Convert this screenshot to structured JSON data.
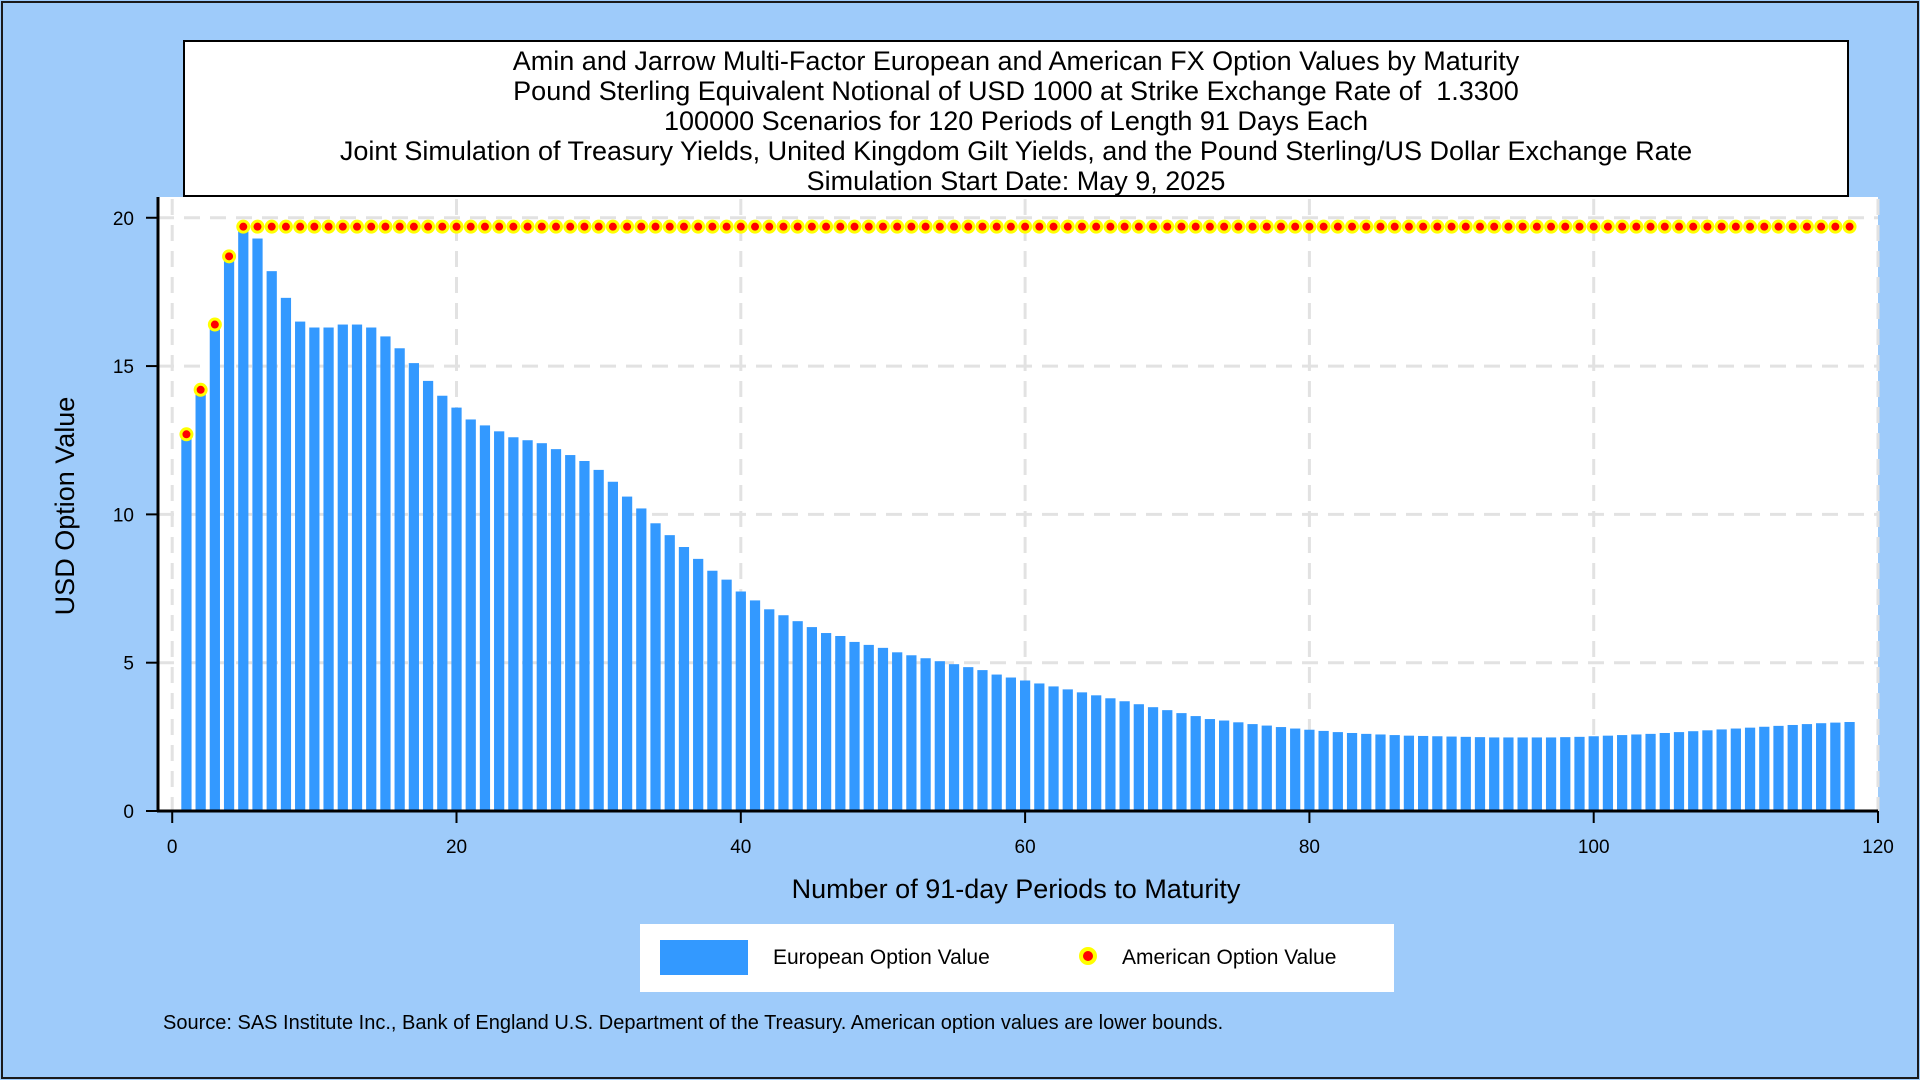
{
  "chart_data": {
    "type": "bar",
    "title_lines": [
      "Amin and Jarrow Multi-Factor European and American FX Option Values by Maturity",
      "Pound Sterling Equivalent Notional of USD 1000 at Strike Exchange Rate of  1.3300",
      "100000 Scenarios for 120 Periods of Length 91 Days Each",
      "Joint Simulation of Treasury Yields, United Kingdom Gilt Yields, and the Pound Sterling/US Dollar Exchange Rate",
      "Simulation Start Date: May 9, 2025"
    ],
    "xlabel": "Number of 91-day Periods to Maturity",
    "ylabel": "USD Option Value",
    "xlim": [
      -1,
      120
    ],
    "ylim": [
      0,
      20.7
    ],
    "xticks": [
      "0",
      "20",
      "40",
      "60",
      "80",
      "100",
      "120"
    ],
    "yticks": [
      "0",
      "5",
      "10",
      "15",
      "20"
    ],
    "grid": true,
    "legend_position": "bottom",
    "x": [
      1,
      2,
      3,
      4,
      5,
      6,
      7,
      8,
      9,
      10,
      11,
      12,
      13,
      14,
      15,
      16,
      17,
      18,
      19,
      20,
      21,
      22,
      23,
      24,
      25,
      26,
      27,
      28,
      29,
      30,
      31,
      32,
      33,
      34,
      35,
      36,
      37,
      38,
      39,
      40,
      41,
      42,
      43,
      44,
      45,
      46,
      47,
      48,
      49,
      50,
      51,
      52,
      53,
      54,
      55,
      56,
      57,
      58,
      59,
      60,
      61,
      62,
      63,
      64,
      65,
      66,
      67,
      68,
      69,
      70,
      71,
      72,
      73,
      74,
      75,
      76,
      77,
      78,
      79,
      80,
      81,
      82,
      83,
      84,
      85,
      86,
      87,
      88,
      89,
      90,
      91,
      92,
      93,
      94,
      95,
      96,
      97,
      98,
      99,
      100,
      101,
      102,
      103,
      104,
      105,
      106,
      107,
      108,
      109,
      110,
      111,
      112,
      113,
      114,
      115,
      116,
      117,
      118
    ],
    "series": [
      {
        "name": "European Option Value",
        "color": "#3399ff",
        "marker": "bar",
        "values": [
          12.7,
          14.2,
          16.4,
          18.7,
          19.7,
          19.3,
          18.2,
          17.3,
          16.5,
          16.3,
          16.3,
          16.4,
          16.4,
          16.3,
          16.0,
          15.6,
          15.1,
          14.5,
          14.0,
          13.6,
          13.2,
          13.0,
          12.8,
          12.6,
          12.5,
          12.4,
          12.2,
          12.0,
          11.8,
          11.5,
          11.1,
          10.6,
          10.2,
          9.7,
          9.3,
          8.9,
          8.5,
          8.1,
          7.8,
          7.4,
          7.1,
          6.8,
          6.6,
          6.4,
          6.2,
          6.0,
          5.9,
          5.7,
          5.6,
          5.5,
          5.35,
          5.25,
          5.15,
          5.05,
          4.95,
          4.85,
          4.75,
          4.6,
          4.5,
          4.4,
          4.3,
          4.2,
          4.1,
          4.0,
          3.9,
          3.8,
          3.7,
          3.6,
          3.5,
          3.4,
          3.3,
          3.2,
          3.1,
          3.05,
          2.99,
          2.93,
          2.88,
          2.83,
          2.78,
          2.74,
          2.7,
          2.66,
          2.63,
          2.6,
          2.58,
          2.56,
          2.54,
          2.53,
          2.52,
          2.51,
          2.5,
          2.49,
          2.48,
          2.48,
          2.48,
          2.48,
          2.48,
          2.49,
          2.5,
          2.52,
          2.54,
          2.56,
          2.58,
          2.6,
          2.63,
          2.66,
          2.69,
          2.72,
          2.75,
          2.78,
          2.81,
          2.84,
          2.87,
          2.9,
          2.93,
          2.96,
          2.98,
          3.0
        ]
      },
      {
        "name": "American Option Value",
        "color": "#ff0000",
        "edge_color": "#ffff00",
        "marker": "circle",
        "values": [
          12.7,
          14.2,
          16.4,
          18.7,
          19.7,
          19.7,
          19.7,
          19.7,
          19.7,
          19.7,
          19.7,
          19.7,
          19.7,
          19.7,
          19.7,
          19.7,
          19.7,
          19.7,
          19.7,
          19.7,
          19.7,
          19.7,
          19.7,
          19.7,
          19.7,
          19.7,
          19.7,
          19.7,
          19.7,
          19.7,
          19.7,
          19.7,
          19.7,
          19.7,
          19.7,
          19.7,
          19.7,
          19.7,
          19.7,
          19.7,
          19.7,
          19.7,
          19.7,
          19.7,
          19.7,
          19.7,
          19.7,
          19.7,
          19.7,
          19.7,
          19.7,
          19.7,
          19.7,
          19.7,
          19.7,
          19.7,
          19.7,
          19.7,
          19.7,
          19.7,
          19.7,
          19.7,
          19.7,
          19.7,
          19.7,
          19.7,
          19.7,
          19.7,
          19.7,
          19.7,
          19.7,
          19.7,
          19.7,
          19.7,
          19.7,
          19.7,
          19.7,
          19.7,
          19.7,
          19.7,
          19.7,
          19.7,
          19.7,
          19.7,
          19.7,
          19.7,
          19.7,
          19.7,
          19.7,
          19.7,
          19.7,
          19.7,
          19.7,
          19.7,
          19.7,
          19.7,
          19.7,
          19.7,
          19.7,
          19.7,
          19.7,
          19.7,
          19.7,
          19.7,
          19.7,
          19.7,
          19.7,
          19.7,
          19.7,
          19.7,
          19.7,
          19.7,
          19.7,
          19.7,
          19.7,
          19.7,
          19.7,
          19.7
        ]
      }
    ]
  },
  "legend": {
    "european_label": "European Option Value",
    "american_label": "American Option Value"
  },
  "footnote": "Source: SAS Institute Inc., Bank of England U.S. Department of the Treasury. American option values are lower bounds."
}
